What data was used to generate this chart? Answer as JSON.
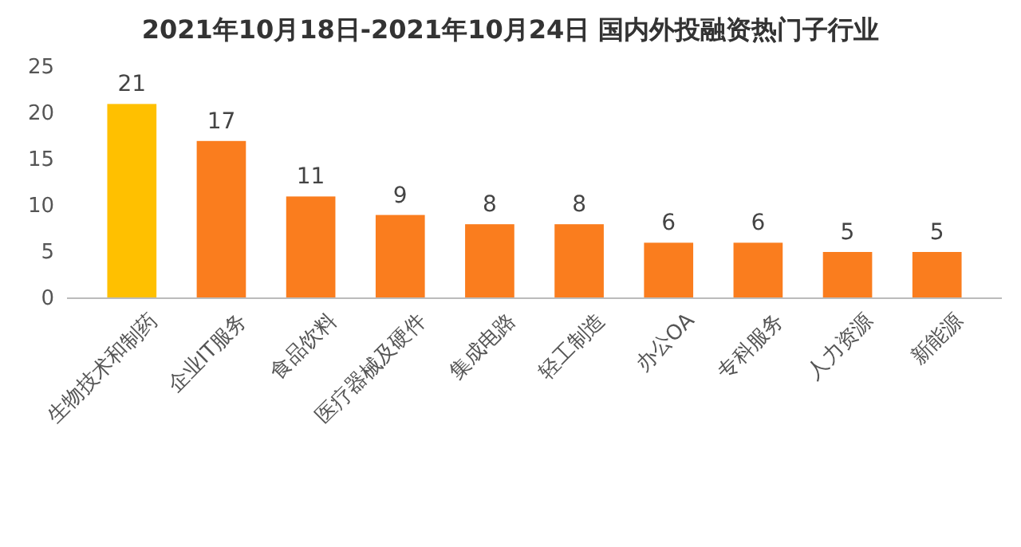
{
  "chart_data": {
    "type": "bar",
    "title": "2021年10月18日-2021年10月24日 国内外投融资热门子行业",
    "categories": [
      "生物技术和制药",
      "企业IT服务",
      "食品饮料",
      "医疗器械及硬件",
      "集成电路",
      "轻工制造",
      "办公OA",
      "专科服务",
      "人力资源",
      "新能源"
    ],
    "values": [
      21,
      17,
      11,
      9,
      8,
      8,
      6,
      6,
      5,
      5
    ],
    "colors": [
      "#ffc000",
      "#fa7d1e",
      "#fa7d1e",
      "#fa7d1e",
      "#fa7d1e",
      "#fa7d1e",
      "#fa7d1e",
      "#fa7d1e",
      "#fa7d1e",
      "#fa7d1e"
    ],
    "ylim": [
      0,
      25
    ],
    "yticks": [
      0,
      5,
      10,
      15,
      20,
      25
    ],
    "data_labels": true,
    "grid": false
  }
}
